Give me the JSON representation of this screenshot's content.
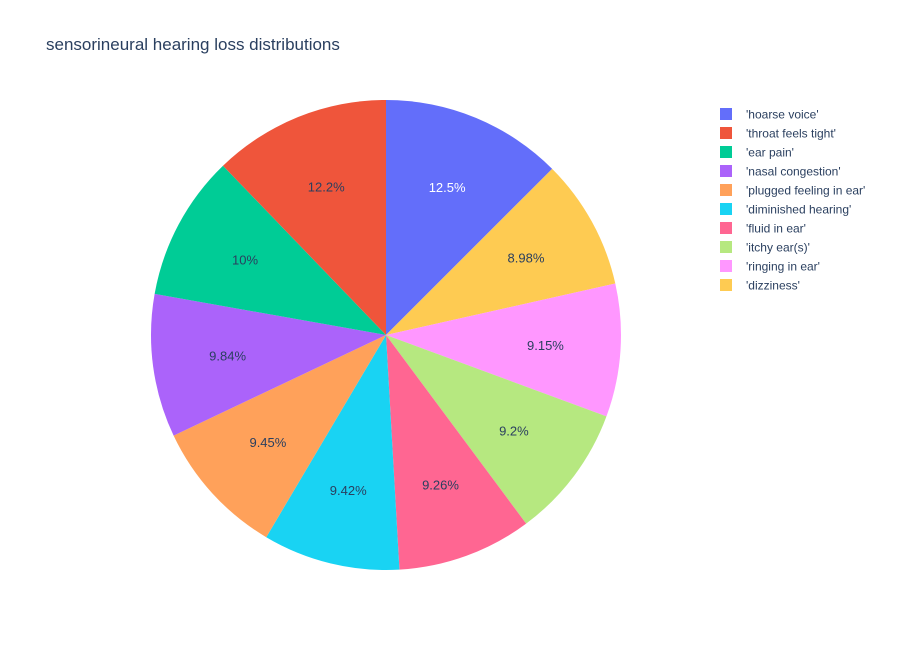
{
  "chart_data": {
    "type": "pie",
    "title": "sensorineural hearing loss distributions",
    "slices": [
      {
        "label": "'hoarse voice'",
        "value": 12.5,
        "display": "12.5%",
        "color": "#636efa",
        "text_color": "#ffffff"
      },
      {
        "label": "'dizziness'",
        "value": 8.98,
        "display": "8.98%",
        "color": "#fecb52",
        "text_color": "#2a3f5f"
      },
      {
        "label": "'ringing in ear'",
        "value": 9.15,
        "display": "9.15%",
        "color": "#ff97ff",
        "text_color": "#2a3f5f"
      },
      {
        "label": "'itchy ear(s)'",
        "value": 9.2,
        "display": "9.2%",
        "color": "#b6e880",
        "text_color": "#2a3f5f"
      },
      {
        "label": "'fluid in ear'",
        "value": 9.26,
        "display": "9.26%",
        "color": "#ff6692",
        "text_color": "#2a3f5f"
      },
      {
        "label": "'diminished hearing'",
        "value": 9.42,
        "display": "9.42%",
        "color": "#19d3f3",
        "text_color": "#2a3f5f"
      },
      {
        "label": "'plugged feeling in ear'",
        "value": 9.45,
        "display": "9.45%",
        "color": "#ffa15a",
        "text_color": "#2a3f5f"
      },
      {
        "label": "'nasal congestion'",
        "value": 9.84,
        "display": "9.84%",
        "color": "#ab63fa",
        "text_color": "#2a3f5f"
      },
      {
        "label": "'ear pain'",
        "value": 10,
        "display": "10%",
        "color": "#00cc96",
        "text_color": "#2a3f5f"
      },
      {
        "label": "'throat feels tight'",
        "value": 12.2,
        "display": "12.2%",
        "color": "#ef553b",
        "text_color": "#2a3f5f"
      }
    ],
    "legend": [
      "'hoarse voice'",
      "'throat feels tight'",
      "'ear pain'",
      "'nasal congestion'",
      "'plugged feeling in ear'",
      "'diminished hearing'",
      "'fluid in ear'",
      "'itchy ear(s)'",
      "'ringing in ear'",
      "'dizziness'"
    ],
    "legend_position": "right",
    "direction": "clockwise",
    "start": "top"
  }
}
